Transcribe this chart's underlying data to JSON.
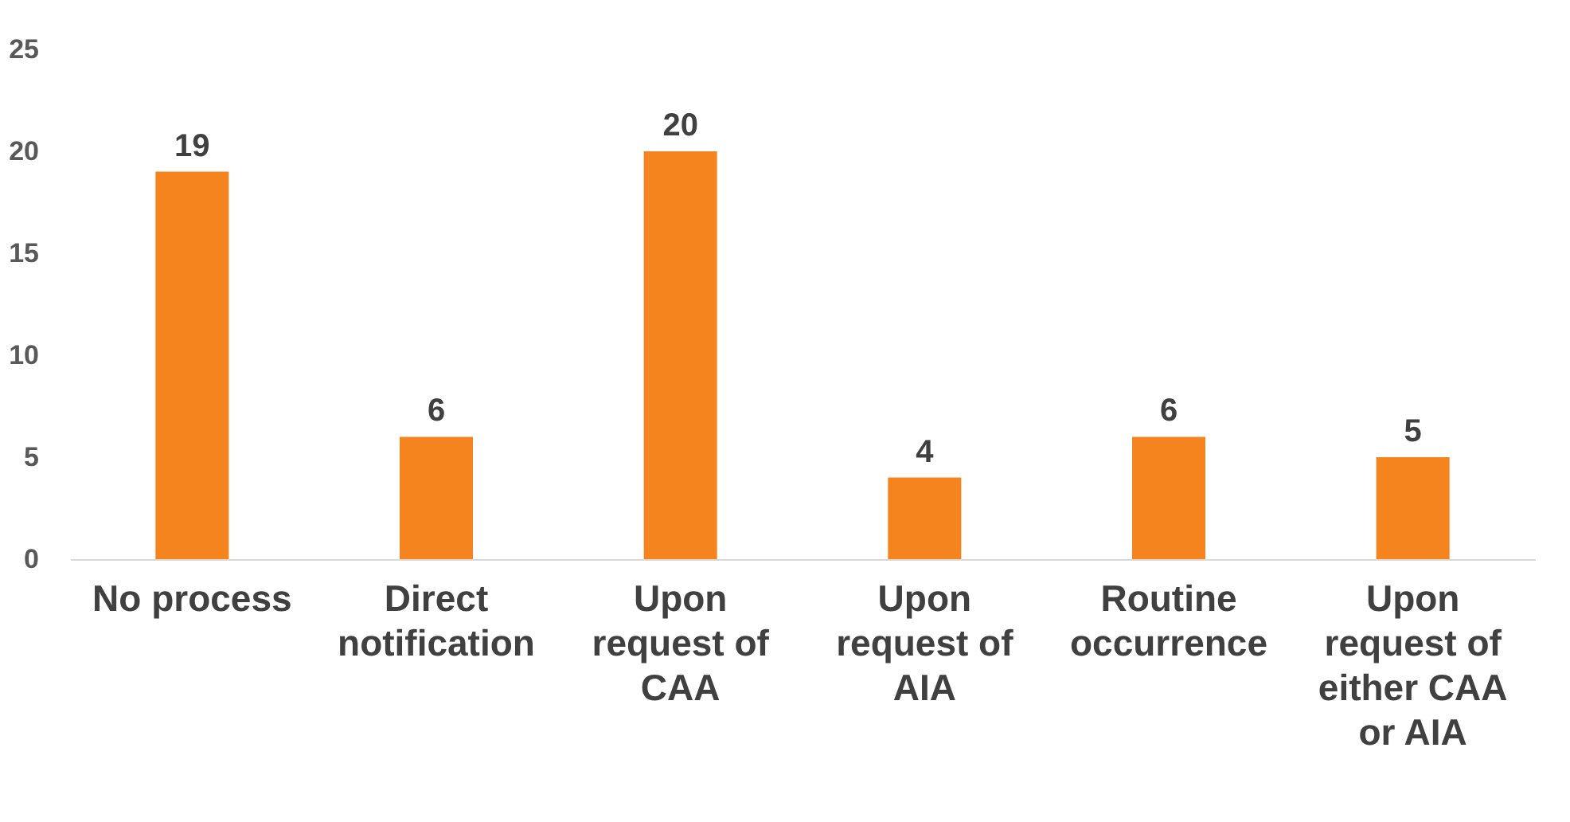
{
  "chart_data": {
    "type": "bar",
    "categories": [
      "No process",
      "Direct notification",
      "Upon request of CAA",
      "Upon request of AIA",
      "Routine occurrence",
      "Upon request of either CAA or AIA"
    ],
    "values": [
      19,
      6,
      20,
      4,
      6,
      5
    ],
    "color": "#f5841f",
    "ylim": [
      0,
      25
    ],
    "yticks": [
      0,
      5,
      10,
      15,
      20,
      25
    ],
    "grid": false,
    "data_labels": true
  }
}
